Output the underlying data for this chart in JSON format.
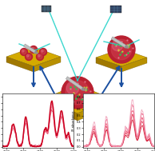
{
  "bg_color": "#ffffff",
  "arrow_color": "#1a4fa0",
  "gold_top": "#d4aa00",
  "gold_left": "#a07800",
  "gold_right": "#b89000",
  "vesicle_dark": "#b82030",
  "vesicle_mid": "#d04050",
  "vesicle_light": "#e87090",
  "green_dot": "#30c050",
  "yellow_dot": "#e0c040",
  "teal": "#20d0c8",
  "teal2": "#40e0d0",
  "cantilever_color": "#c0c0c0",
  "tip_color": "#909090",
  "device_left_color": "#384858",
  "device_right_color": "#304060",
  "spec_colors_left": [
    "#cc0020",
    "#dd2040",
    "#ee5070",
    "#ee7090",
    "#f0a0b8"
  ],
  "spec_colors_right": [
    "#cc0020",
    "#dd2040",
    "#ee5070",
    "#ee7090",
    "#f0a0b8"
  ],
  "figsize": [
    1.94,
    1.89
  ],
  "dpi": 100
}
